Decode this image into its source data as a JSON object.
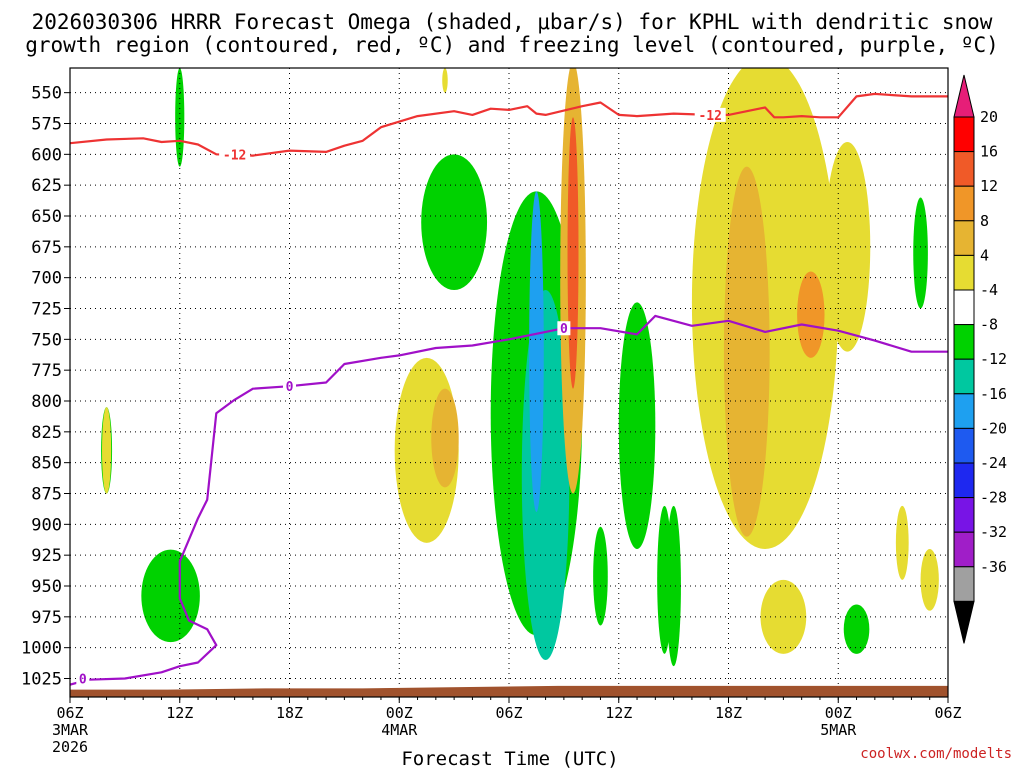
{
  "chart_data": {
    "type": "heatmap",
    "title": {
      "line1": "2026030306 HRRR Forecast Omega (shaded, μbar/s) for KPHL with dendritic snow",
      "line2": "growth region (contoured, red, ºC) and freezing level (contoured, purple, ºC)"
    },
    "xlabel": "Forecast Time (UTC)",
    "credit": "coolwx.com/modelts",
    "x_range_hours": [
      0,
      48
    ],
    "x_ticks": [
      {
        "hour": 0,
        "label": "06Z",
        "day": "3MAR",
        "year": "2026"
      },
      {
        "hour": 6,
        "label": "12Z"
      },
      {
        "hour": 12,
        "label": "18Z"
      },
      {
        "hour": 18,
        "label": "00Z",
        "day": "4MAR"
      },
      {
        "hour": 24,
        "label": "06Z"
      },
      {
        "hour": 30,
        "label": "12Z"
      },
      {
        "hour": 36,
        "label": "18Z"
      },
      {
        "hour": 42,
        "label": "00Z",
        "day": "5MAR"
      },
      {
        "hour": 48,
        "label": "06Z"
      }
    ],
    "y_range_hpa": [
      1040,
      530
    ],
    "y_ticks": [
      "550",
      "575",
      "600",
      "625",
      "650",
      "675",
      "700",
      "725",
      "750",
      "775",
      "800",
      "825",
      "850",
      "875",
      "900",
      "925",
      "950",
      "975",
      "1000",
      "1025"
    ],
    "colorbar": {
      "levels": [
        "20",
        "16",
        "12",
        "8",
        "4",
        "-4",
        "-8",
        "-12",
        "-16",
        "-20",
        "-24",
        "-28",
        "-32",
        "-36"
      ],
      "colors": [
        "#ff0000",
        "#f05a28",
        "#f09628",
        "#e6b432",
        "#e6dc32",
        "#ffffff",
        "#00d200",
        "#00c8a0",
        "#1ea0f0",
        "#1e5af0",
        "#1e28f0",
        "#7814e6",
        "#a01ec8",
        "#a0a0a0"
      ],
      "top_color": "#e61e78",
      "bottom_color": "#000000"
    },
    "contours": [
      {
        "name": "dendritic snow growth region",
        "level": "-12",
        "color": "#ee3333",
        "labels": [
          {
            "hour": 9,
            "hpa": 600
          },
          {
            "hour": 35,
            "hpa": 568
          }
        ],
        "points": [
          [
            0,
            591
          ],
          [
            2,
            588
          ],
          [
            4,
            587
          ],
          [
            5,
            590
          ],
          [
            6,
            589
          ],
          [
            7,
            592
          ],
          [
            8,
            600
          ],
          [
            10,
            601
          ],
          [
            12,
            597
          ],
          [
            14,
            598
          ],
          [
            15,
            593
          ],
          [
            16,
            589
          ],
          [
            17,
            578
          ],
          [
            19,
            569
          ],
          [
            21,
            565
          ],
          [
            22,
            568
          ],
          [
            23,
            563
          ],
          [
            24,
            564
          ],
          [
            25,
            561
          ],
          [
            25.5,
            567
          ],
          [
            26,
            568
          ],
          [
            28,
            561
          ],
          [
            29,
            558
          ],
          [
            30,
            568
          ],
          [
            31,
            569
          ],
          [
            33,
            567
          ],
          [
            35,
            568
          ],
          [
            36,
            568
          ],
          [
            37,
            565
          ],
          [
            38,
            562
          ],
          [
            38.5,
            570
          ],
          [
            39,
            570
          ],
          [
            40,
            569
          ],
          [
            41,
            570
          ],
          [
            42,
            570
          ],
          [
            43,
            553
          ],
          [
            44,
            551
          ],
          [
            46,
            553
          ],
          [
            48,
            553
          ]
        ]
      },
      {
        "name": "freezing level",
        "level": "0",
        "color": "#a010c8",
        "labels": [
          {
            "hour": 0.7,
            "hpa": 1025
          },
          {
            "hour": 12,
            "hpa": 788
          },
          {
            "hour": 27,
            "hpa": 741
          }
        ],
        "points": [
          [
            0,
            1030
          ],
          [
            1,
            1026
          ],
          [
            3,
            1025
          ],
          [
            5,
            1020
          ],
          [
            6,
            1015
          ],
          [
            7,
            1012
          ],
          [
            8,
            998
          ],
          [
            7.5,
            985
          ],
          [
            6.5,
            978
          ],
          [
            6,
            960
          ],
          [
            6,
            930
          ],
          [
            7,
            895
          ],
          [
            7.5,
            880
          ],
          [
            8,
            810
          ],
          [
            9,
            799
          ],
          [
            10,
            790
          ],
          [
            12,
            788
          ],
          [
            14,
            785
          ],
          [
            15,
            770
          ],
          [
            17,
            765
          ],
          [
            18,
            763
          ],
          [
            20,
            757
          ],
          [
            22,
            755
          ],
          [
            24,
            750
          ],
          [
            26,
            744
          ],
          [
            27,
            741
          ],
          [
            29,
            741
          ],
          [
            31,
            746
          ],
          [
            32,
            731
          ],
          [
            34,
            739
          ],
          [
            36,
            735
          ],
          [
            38,
            744
          ],
          [
            40,
            738
          ],
          [
            42,
            743
          ],
          [
            44,
            751
          ],
          [
            46,
            760
          ],
          [
            48,
            760
          ]
        ]
      }
    ],
    "omega_regions": [
      {
        "sign": "up",
        "value": -8,
        "hour": 6,
        "hpa": 570,
        "w_h": 0.5,
        "h_hpa": 80
      },
      {
        "sign": "down",
        "value": 4,
        "hour": 20.5,
        "hpa": 540,
        "w_h": 0.3,
        "h_hpa": 20
      },
      {
        "sign": "up",
        "value": -8,
        "hour": 2,
        "hpa": 840,
        "w_h": 0.6,
        "h_hpa": 70
      },
      {
        "sign": "down",
        "value": 4,
        "hour": 2,
        "hpa": 840,
        "w_h": 0.5,
        "h_hpa": 70
      },
      {
        "sign": "up",
        "value": -8,
        "hour": 5.5,
        "hpa": 958,
        "w_h": 3.2,
        "h_hpa": 75
      },
      {
        "sign": "up",
        "value": -8,
        "hour": 21,
        "hpa": 655,
        "w_h": 3.6,
        "h_hpa": 110
      },
      {
        "sign": "down",
        "value": 4,
        "hour": 19.5,
        "hpa": 840,
        "w_h": 3.5,
        "h_hpa": 150
      },
      {
        "sign": "down",
        "value": 8,
        "hour": 20.5,
        "hpa": 830,
        "w_h": 1.5,
        "h_hpa": 80
      },
      {
        "sign": "up",
        "value": -8,
        "hour": 25.5,
        "hpa": 810,
        "w_h": 5,
        "h_hpa": 360
      },
      {
        "sign": "up",
        "value": -12,
        "hour": 26,
        "hpa": 860,
        "w_h": 2.6,
        "h_hpa": 300
      },
      {
        "sign": "up",
        "value": -16,
        "hour": 25.5,
        "hpa": 760,
        "w_h": 0.8,
        "h_hpa": 260
      },
      {
        "sign": "down",
        "value": 8,
        "hour": 27.5,
        "hpa": 700,
        "w_h": 1.4,
        "h_hpa": 350
      },
      {
        "sign": "down",
        "value": 16,
        "hour": 27.5,
        "hpa": 680,
        "w_h": 0.6,
        "h_hpa": 220
      },
      {
        "sign": "up",
        "value": -8,
        "hour": 31,
        "hpa": 820,
        "w_h": 2,
        "h_hpa": 200
      },
      {
        "sign": "down",
        "value": 4,
        "hour": 38,
        "hpa": 720,
        "w_h": 8,
        "h_hpa": 400
      },
      {
        "sign": "down",
        "value": 8,
        "hour": 37,
        "hpa": 760,
        "w_h": 2.5,
        "h_hpa": 300
      },
      {
        "sign": "down",
        "value": 12,
        "hour": 40.5,
        "hpa": 730,
        "w_h": 1.5,
        "h_hpa": 70
      },
      {
        "sign": "up",
        "value": -8,
        "hour": 46.5,
        "hpa": 680,
        "w_h": 0.8,
        "h_hpa": 90
      },
      {
        "sign": "down",
        "value": 4,
        "hour": 42.5,
        "hpa": 675,
        "w_h": 2.5,
        "h_hpa": 170
      },
      {
        "sign": "down",
        "value": 4,
        "hour": 39,
        "hpa": 975,
        "w_h": 2.5,
        "h_hpa": 60
      },
      {
        "sign": "up",
        "value": -8,
        "hour": 43,
        "hpa": 985,
        "w_h": 1.4,
        "h_hpa": 40
      },
      {
        "sign": "up",
        "value": -8,
        "hour": 33,
        "hpa": 950,
        "w_h": 0.8,
        "h_hpa": 130
      },
      {
        "sign": "up",
        "value": -8,
        "hour": 32.5,
        "hpa": 945,
        "w_h": 0.8,
        "h_hpa": 120
      },
      {
        "sign": "up",
        "value": -8,
        "hour": 29,
        "hpa": 942,
        "w_h": 0.8,
        "h_hpa": 80
      },
      {
        "sign": "down",
        "value": 4,
        "hour": 47,
        "hpa": 945,
        "w_h": 1,
        "h_hpa": 50
      },
      {
        "sign": "down",
        "value": 4,
        "hour": 45.5,
        "hpa": 915,
        "w_h": 0.7,
        "h_hpa": 60
      }
    ],
    "surface": {
      "color": "#a0522d",
      "pressure_hpa": [
        1034,
        1034,
        1033,
        1033,
        1032,
        1031,
        1031,
        1031,
        1031,
        1031
      ]
    }
  }
}
